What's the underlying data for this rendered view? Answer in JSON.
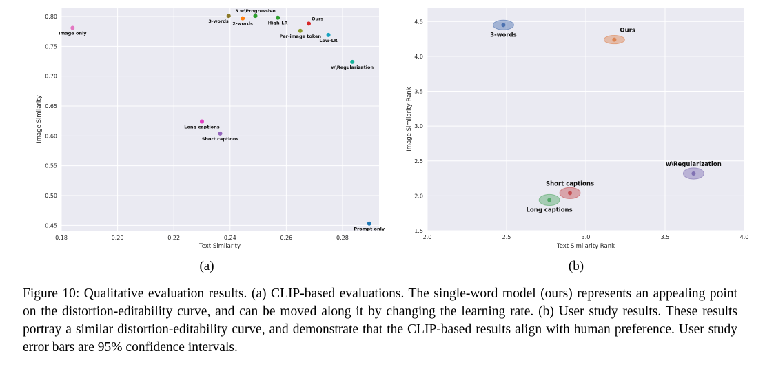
{
  "chart_data": [
    {
      "type": "scatter",
      "title": "",
      "xlabel": "Text Similarity",
      "ylabel": "Image Similarity",
      "xlim": [
        0.18,
        0.293
      ],
      "ylim": [
        0.44,
        0.815
      ],
      "xticks": [
        0.18,
        0.2,
        0.22,
        0.24,
        0.26,
        0.28
      ],
      "xtick_labels": [
        "0.18",
        "0.20",
        "0.22",
        "0.24",
        "0.26",
        "0.28"
      ],
      "yticks": [
        0.45,
        0.5,
        0.55,
        0.6,
        0.65,
        0.7,
        0.75,
        0.8
      ],
      "ytick_labels": [
        "0.45",
        "0.50",
        "0.55",
        "0.60",
        "0.65",
        "0.70",
        "0.75",
        "0.80"
      ],
      "grid": true,
      "points": [
        {
          "label": "Image only",
          "x": 0.184,
          "y": 0.781,
          "color": "#e377c2",
          "anchor": "middle",
          "dx": 0,
          "dy": 1
        },
        {
          "label": "3-words",
          "x": 0.2395,
          "y": 0.801,
          "color": "#8c7a2a",
          "anchor": "end",
          "dx": 0,
          "dy": 1
        },
        {
          "label": "2-words",
          "x": 0.2445,
          "y": 0.797,
          "color": "#ff7f0e",
          "anchor": "middle",
          "dx": 0,
          "dy": 1
        },
        {
          "label": "3 w\\Progressive",
          "x": 0.249,
          "y": 0.801,
          "color": "#2ca02c",
          "anchor": "middle",
          "dx": 0,
          "dy": -1
        },
        {
          "label": "High-LR",
          "x": 0.257,
          "y": 0.798,
          "color": "#2ca02c",
          "anchor": "middle",
          "dx": 0,
          "dy": 1
        },
        {
          "label": "Ours",
          "x": 0.268,
          "y": 0.788,
          "color": "#d62728",
          "anchor": "start",
          "dx": 1,
          "dy": -1
        },
        {
          "label": "Per-image token",
          "x": 0.265,
          "y": 0.776,
          "color": "#8c9a2a",
          "anchor": "middle",
          "dx": 0,
          "dy": 1
        },
        {
          "label": "Low-LR",
          "x": 0.275,
          "y": 0.769,
          "color": "#17a2c0",
          "anchor": "middle",
          "dx": 0,
          "dy": 1
        },
        {
          "label": "w\\Regularization",
          "x": 0.2835,
          "y": 0.724,
          "color": "#17b39a",
          "anchor": "middle",
          "dx": 0,
          "dy": 1
        },
        {
          "label": "Long captions",
          "x": 0.23,
          "y": 0.624,
          "color": "#e040c0",
          "anchor": "middle",
          "dx": 0,
          "dy": 1
        },
        {
          "label": "Short captions",
          "x": 0.2365,
          "y": 0.604,
          "color": "#9467bd",
          "anchor": "middle",
          "dx": 0,
          "dy": 1
        },
        {
          "label": "Prompt only",
          "x": 0.2895,
          "y": 0.453,
          "color": "#1f77b4",
          "anchor": "middle",
          "dx": 0,
          "dy": 1
        }
      ],
      "panel_label": "(a)"
    },
    {
      "type": "scatter",
      "title": "",
      "xlabel": "Text Similarity Rank",
      "ylabel": "Image Similarity Rank",
      "xlim": [
        2.0,
        4.0
      ],
      "ylim": [
        1.5,
        4.7
      ],
      "xticks": [
        2.0,
        2.5,
        3.0,
        3.5,
        4.0
      ],
      "xtick_labels": [
        "2.0",
        "2.5",
        "3.0",
        "3.5",
        "4.0"
      ],
      "yticks": [
        1.5,
        2.0,
        2.5,
        3.0,
        3.5,
        4.0,
        4.5
      ],
      "ytick_labels": [
        "1.5",
        "2.0",
        "2.5",
        "3.0",
        "3.5",
        "4.0",
        "4.5"
      ],
      "grid": true,
      "points": [
        {
          "label": "3-words",
          "x": 2.48,
          "y": 4.45,
          "err_x": 0.065,
          "err_y": 0.07,
          "color": "#4c72b0",
          "anchor": "middle",
          "dx": 0,
          "dy": 1
        },
        {
          "label": "Ours",
          "x": 3.18,
          "y": 4.24,
          "err_x": 0.065,
          "err_y": 0.06,
          "color": "#dd8452",
          "anchor": "start",
          "dx": 1,
          "dy": -1
        },
        {
          "label": "Short captions",
          "x": 2.9,
          "y": 2.04,
          "err_x": 0.065,
          "err_y": 0.08,
          "color": "#c44e52",
          "anchor": "middle",
          "dx": 0,
          "dy": -1
        },
        {
          "label": "Long captions",
          "x": 2.77,
          "y": 1.94,
          "err_x": 0.065,
          "err_y": 0.08,
          "color": "#55a868",
          "anchor": "middle",
          "dx": 0,
          "dy": 1
        },
        {
          "label": "w\\Regularization",
          "x": 3.68,
          "y": 2.32,
          "err_x": 0.065,
          "err_y": 0.08,
          "color": "#8172b3",
          "anchor": "middle",
          "dx": 0,
          "dy": -1
        }
      ],
      "panel_label": "(b)"
    }
  ],
  "caption": "Figure 10: Qualitative evaluation results. (a) CLIP-based evaluations. The single-word model (ours) represents an appealing point on the distortion-editability curve, and can be moved along it by changing the learning rate. (b) User study results. These results portray a similar distortion-editability curve, and demonstrate that the CLIP-based results align with human preference. User study error bars are 95% confidence intervals."
}
